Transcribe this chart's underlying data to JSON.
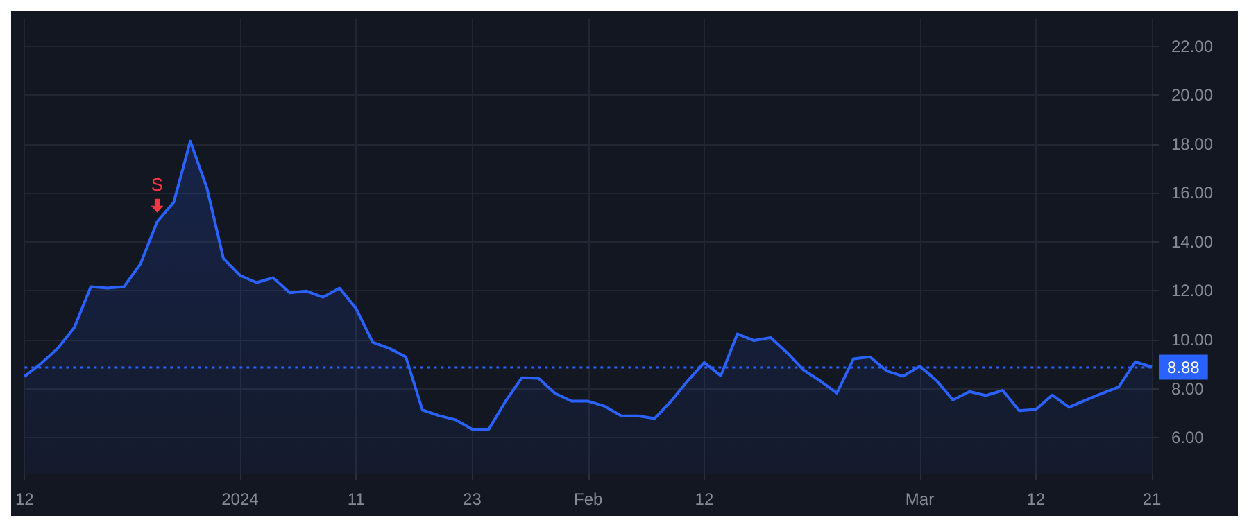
{
  "chart_data": {
    "type": "area",
    "categories": [
      "12",
      null,
      null,
      null,
      null,
      null,
      null,
      null,
      null,
      null,
      null,
      null,
      null,
      "2024",
      null,
      null,
      null,
      null,
      null,
      null,
      "11",
      null,
      null,
      null,
      null,
      null,
      null,
      "23",
      null,
      null,
      null,
      null,
      null,
      null,
      "Feb",
      null,
      null,
      null,
      null,
      null,
      null,
      "12",
      null,
      null,
      null,
      null,
      null,
      null,
      null,
      null,
      null,
      null,
      null,
      null,
      "Mar",
      null,
      null,
      null,
      null,
      null,
      null,
      "12",
      null,
      null,
      null,
      null,
      null,
      null,
      "21"
    ],
    "series": [
      {
        "color": "#2962ff",
        "values": [
          8.5,
          9.03,
          9.65,
          10.5,
          12.17,
          12.11,
          12.17,
          13.11,
          14.83,
          15.62,
          18.12,
          16.21,
          13.32,
          12.63,
          12.34,
          12.54,
          11.92,
          11.99,
          11.74,
          12.11,
          11.28,
          9.9,
          9.65,
          9.3,
          7.13,
          6.9,
          6.73,
          6.34,
          6.34,
          7.47,
          8.45,
          8.43,
          7.81,
          7.49,
          7.49,
          7.28,
          6.89,
          6.89,
          6.78,
          7.49,
          8.32,
          9.07,
          8.53,
          10.24,
          9.97,
          10.09,
          9.47,
          8.76,
          8.32,
          7.82,
          9.22,
          9.3,
          8.73,
          8.51,
          8.92,
          8.34,
          7.54,
          7.88,
          7.72,
          7.93,
          7.1,
          7.15,
          7.74,
          7.24,
          7.53,
          7.81,
          8.07,
          9.1,
          8.88
        ]
      }
    ],
    "ylim": [
      4.5,
      23.1
    ],
    "yticks": [
      {
        "value": 6,
        "label": "6.00"
      },
      {
        "value": 8,
        "label": "8.00"
      },
      {
        "value": 10,
        "label": "10.00"
      },
      {
        "value": 12,
        "label": "12.00"
      },
      {
        "value": 14,
        "label": "14.00"
      },
      {
        "value": 16,
        "label": "16.00"
      },
      {
        "value": 18,
        "label": "18.00"
      },
      {
        "value": 20,
        "label": "20.00"
      },
      {
        "value": 22,
        "label": "22.00"
      }
    ],
    "ref_lines": [
      {
        "axis": "y",
        "value": 8.88,
        "label": "8.88",
        "color": "#2962ff",
        "line_style": "dotted"
      }
    ],
    "annotations": [
      {
        "text": "S",
        "y": 15.14
      }
    ],
    "grid": true,
    "marker": "none"
  }
}
